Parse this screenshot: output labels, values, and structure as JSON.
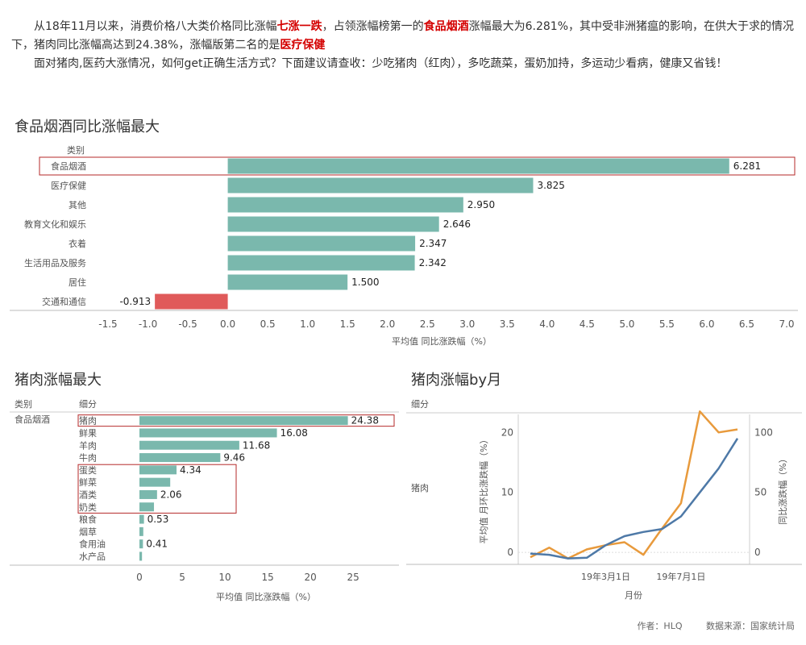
{
  "intro": {
    "p1_a": "从18年11月以来，消费价格八大类价格同比涨幅",
    "p1_h1": "七涨一跌",
    "p1_b": "，占领涨幅榜第一的",
    "p1_h2": "食品烟酒",
    "p1_c": "涨幅最大为6.281%，其中受非洲猪瘟的影响，在供大于求的情况下，猪肉同比涨幅高达到24.38%，涨幅版第二名的是",
    "p1_h3": "医疗保健",
    "p2": "面对猪肉,医药大涨情况，如何get正确生活方式？下面建议请查收：少吃猪肉（红肉），多吃蔬菜，蛋奶加持，多运动少看病，健康又省钱！"
  },
  "footer": {
    "author": "作者：HLQ",
    "source": "数据来源：国家统计局"
  },
  "colors": {
    "bar": "#7ab8ad",
    "negative": "#e05a5a",
    "highlight_box": "#b52a2a",
    "line_orange": "#e89a3c",
    "line_blue": "#4e79a7"
  },
  "chart_data": [
    {
      "type": "bar",
      "title": "食品烟酒同比涨幅最大",
      "header": "类别",
      "categories": [
        "食品烟酒",
        "医疗保健",
        "其他",
        "教育文化和娱乐",
        "衣着",
        "生活用品及服务",
        "居住",
        "交通和通信"
      ],
      "values": [
        6.281,
        3.825,
        2.95,
        2.646,
        2.347,
        2.342,
        1.5,
        -0.913
      ],
      "labels": [
        "6.281",
        "3.825",
        "2.950",
        "2.646",
        "2.347",
        "2.342",
        "1.500",
        "-0.913"
      ],
      "xlabel": "平均值 同比涨跌幅（%）",
      "xlim": [
        -1.5,
        7.0
      ],
      "xticks": [
        -1.5,
        -1.0,
        -0.5,
        0.0,
        0.5,
        1.0,
        1.5,
        2.0,
        2.5,
        3.0,
        3.5,
        4.0,
        4.5,
        5.0,
        5.5,
        6.0,
        6.5,
        7.0
      ],
      "xtick_labels": [
        "-1.5",
        "-1.0",
        "-0.5",
        "0.0",
        "0.5",
        "1.0",
        "1.5",
        "2.0",
        "2.5",
        "3.0",
        "3.5",
        "4.0",
        "4.5",
        "5.0",
        "5.5",
        "6.0",
        "6.5",
        "7.0"
      ],
      "highlighted": [
        "食品烟酒"
      ]
    },
    {
      "type": "bar",
      "title": "猪肉涨幅最大",
      "header_category": "类别",
      "header_sub": "细分",
      "group": "食品烟酒",
      "categories": [
        "猪肉",
        "鲜果",
        "羊肉",
        "牛肉",
        "蛋类",
        "鲜菜",
        "酒类",
        "奶类",
        "粮食",
        "烟草",
        "食用油",
        "水产品"
      ],
      "values": [
        24.38,
        16.08,
        11.68,
        9.46,
        4.34,
        3.6,
        2.06,
        1.7,
        0.53,
        0.45,
        0.41,
        0.3
      ],
      "labels": [
        "24.38",
        "16.08",
        "11.68",
        "9.46",
        "4.34",
        "",
        "2.06",
        "",
        "0.53",
        "",
        "0.41",
        ""
      ],
      "xlabel": "平均值 同比涨跌幅（%）",
      "xlim": [
        0,
        28
      ],
      "xticks": [
        0,
        5,
        10,
        15,
        20,
        25
      ],
      "xtick_labels": [
        "0",
        "5",
        "10",
        "15",
        "20",
        "25"
      ],
      "highlighted": [
        "猪肉"
      ],
      "boxed_group": [
        "蛋类",
        "鲜菜",
        "酒类",
        "奶类"
      ]
    },
    {
      "type": "line",
      "title": "猪肉涨幅by月",
      "header": "细分",
      "row_label": "猪肉",
      "xlabel": "月份",
      "x_tick_labels": [
        "19年3月1日",
        "19年7月1日"
      ],
      "x_tick_index": [
        4,
        8
      ],
      "ylabel_left": "平均值 月环比涨跌幅（%）",
      "ylabel_right": "同比涨跌幅（%）",
      "ylim_left": [
        -2,
        23
      ],
      "yticks_left": [
        0,
        10,
        20
      ],
      "ylim_right": [
        -10,
        115
      ],
      "yticks_right": [
        0,
        50,
        100
      ],
      "series": [
        {
          "axis": "left",
          "color": "#e89a3c",
          "values": [
            -0.8,
            0.8,
            -1.0,
            0.5,
            1.2,
            1.7,
            -0.4,
            4.0,
            8.2,
            23.5,
            20.0,
            20.5
          ]
        },
        {
          "axis": "right",
          "color": "#4e79a7",
          "values": [
            -1.0,
            -2.0,
            -5.0,
            -4.5,
            6.0,
            13.5,
            17.0,
            19.5,
            30.0,
            50.0,
            70.0,
            95.0
          ]
        }
      ]
    }
  ]
}
